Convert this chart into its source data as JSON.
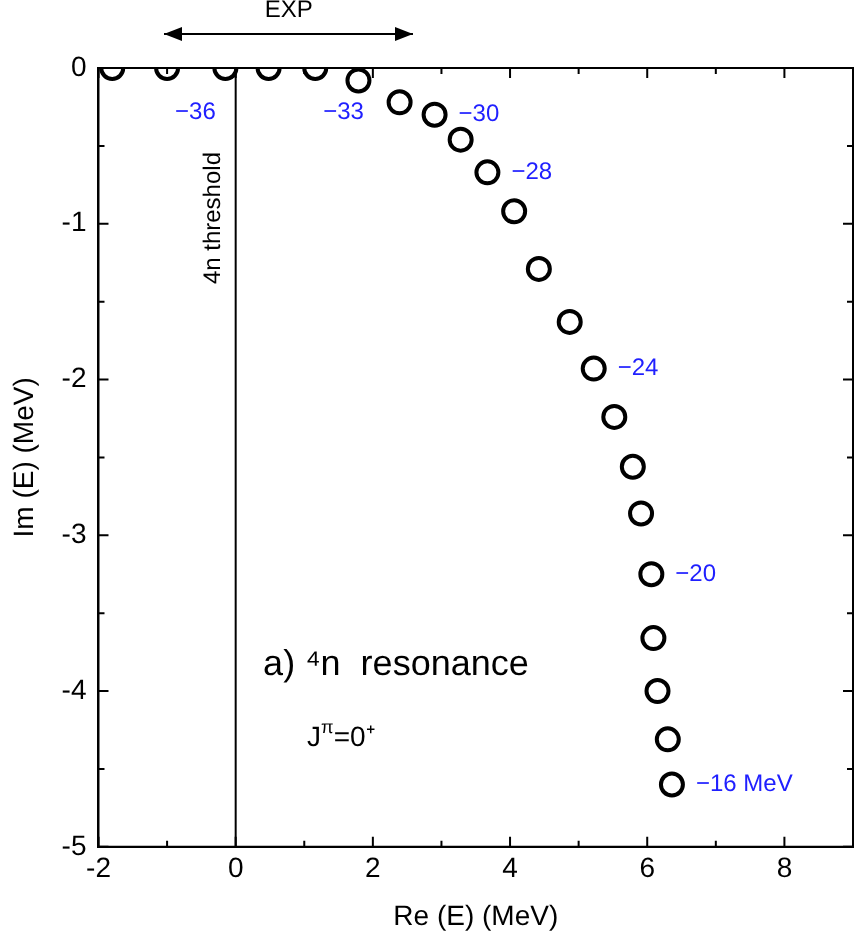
{
  "chart_data": {
    "type": "scatter",
    "xlabel": "Re (E) (MeV)",
    "ylabel": "Im (E) (MeV)",
    "x": [
      -1.8,
      -1.0,
      -0.15,
      0.48,
      1.16,
      1.79,
      2.39,
      2.9,
      3.28,
      3.67,
      4.06,
      4.42,
      4.87,
      5.22,
      5.52,
      5.79,
      5.91,
      6.06,
      6.09,
      6.15,
      6.3,
      6.36
    ],
    "series": [
      {
        "color": "#000000",
        "values": [
          0,
          0,
          0,
          0,
          0,
          -0.08,
          -0.22,
          -0.3,
          -0.46,
          -0.67,
          -0.92,
          -1.29,
          -1.63,
          -1.93,
          -2.24,
          -2.56,
          -2.86,
          -3.25,
          -3.66,
          -4.0,
          -4.31,
          -4.6
        ]
      }
    ],
    "marker": "circle",
    "xlim": [
      -2,
      9
    ],
    "ylim": [
      -5,
      0
    ],
    "xticks": [
      -2,
      0,
      2,
      4,
      6,
      8
    ],
    "yticks": [
      -5,
      -4,
      -3,
      -2,
      -1,
      0
    ],
    "grid": false,
    "legend": false,
    "ref_lines": [
      {
        "axis": "x",
        "value": 0,
        "label": "4n threshold",
        "color": "#000000"
      }
    ],
    "annotations": [
      "EXP",
      {
        "text": "−36",
        "x": -1.0,
        "y": 0
      },
      {
        "text": "−33",
        "x": 1.16,
        "y": 0
      },
      {
        "text": "−30",
        "x": 2.9,
        "y": -0.3
      },
      {
        "text": "−28",
        "x": 3.67,
        "y": -0.67
      },
      {
        "text": "−24",
        "x": 5.22,
        "y": -1.93
      },
      {
        "text": "−20",
        "x": 6.06,
        "y": -3.25
      },
      {
        "text": "−16 MeV",
        "x": 6.36,
        "y": -4.6
      },
      "a) ⁴n  resonance",
      "J$^{π}$=0⁺"
    ]
  }
}
